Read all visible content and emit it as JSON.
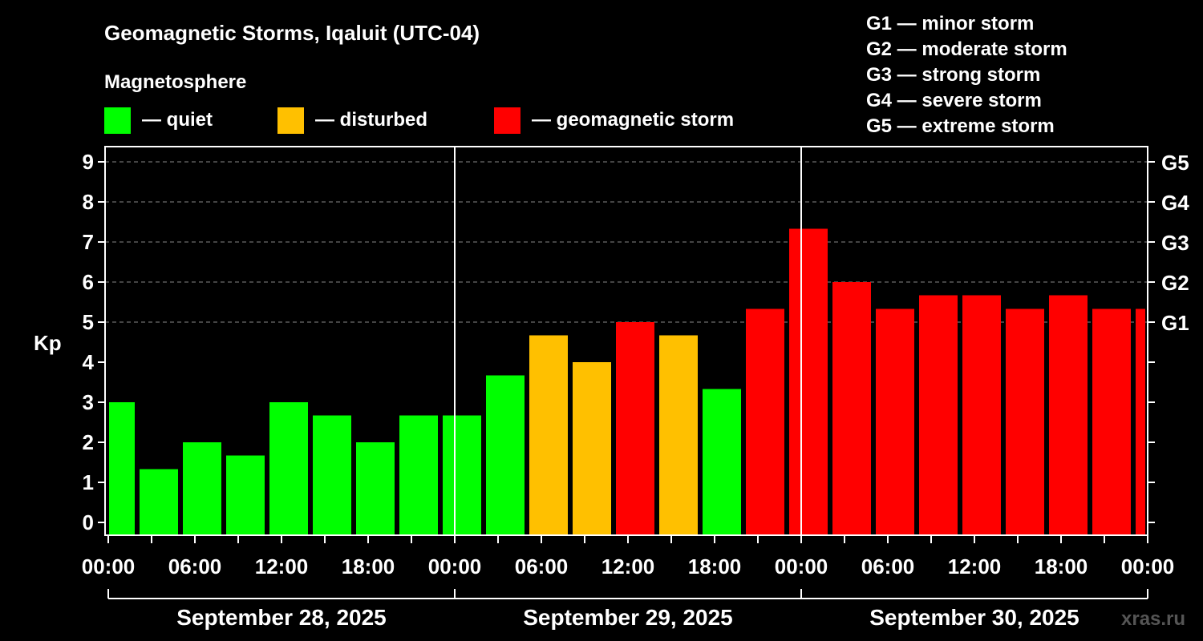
{
  "chart_data": {
    "type": "bar",
    "title": "Geomagnetic Storms, Iqaluit (UTC-04)",
    "legend_title": "Magnetosphere",
    "legend": [
      {
        "label": "— quiet",
        "color": "#00ff00"
      },
      {
        "label": "— disturbed",
        "color": "#ffc000"
      },
      {
        "label": "— geomagnetic storm",
        "color": "#ff0000"
      }
    ],
    "g_scale": [
      "G1 — minor storm",
      "G2 — moderate storm",
      "G3 — strong storm",
      "G4 — severe storm",
      "G5 — extreme storm"
    ],
    "ylabel": "Kp",
    "ylim": [
      -0.32,
      9.7
    ],
    "yticks": [
      "0",
      "1",
      "2",
      "3",
      "4",
      "5",
      "6",
      "7",
      "8",
      "9"
    ],
    "right_ticks": [
      {
        "kp": 5,
        "label": "G1"
      },
      {
        "kp": 6,
        "label": "G2"
      },
      {
        "kp": 7,
        "label": "G3"
      },
      {
        "kp": 8,
        "label": "G4"
      },
      {
        "kp": 9,
        "label": "G5"
      }
    ],
    "xlim_hours": [
      0,
      72
    ],
    "xticks": [
      "00:00",
      "06:00",
      "12:00",
      "18:00",
      "00:00",
      "06:00",
      "12:00",
      "18:00",
      "00:00",
      "06:00",
      "12:00",
      "18:00",
      "00:00"
    ],
    "days": [
      "September 28, 2025",
      "September 29, 2025",
      "September 30, 2025"
    ],
    "bars": [
      {
        "start_h": -1,
        "kp": 3.0
      },
      {
        "start_h": 2,
        "kp": 1.33
      },
      {
        "start_h": 5,
        "kp": 2.0
      },
      {
        "start_h": 8,
        "kp": 1.67
      },
      {
        "start_h": 11,
        "kp": 3.0
      },
      {
        "start_h": 14,
        "kp": 2.67
      },
      {
        "start_h": 17,
        "kp": 2.0
      },
      {
        "start_h": 20,
        "kp": 2.67
      },
      {
        "start_h": 23,
        "kp": 2.67
      },
      {
        "start_h": 26,
        "kp": 3.67
      },
      {
        "start_h": 29,
        "kp": 4.67
      },
      {
        "start_h": 32,
        "kp": 4.0
      },
      {
        "start_h": 35,
        "kp": 5.0
      },
      {
        "start_h": 38,
        "kp": 4.67
      },
      {
        "start_h": 41,
        "kp": 3.33
      },
      {
        "start_h": 44,
        "kp": 5.33
      },
      {
        "start_h": 47,
        "kp": 7.33
      },
      {
        "start_h": 50,
        "kp": 6.0
      },
      {
        "start_h": 53,
        "kp": 5.33
      },
      {
        "start_h": 56,
        "kp": 5.67
      },
      {
        "start_h": 59,
        "kp": 5.67
      },
      {
        "start_h": 62,
        "kp": 5.33
      },
      {
        "start_h": 65,
        "kp": 5.67
      },
      {
        "start_h": 68,
        "kp": 5.33
      },
      {
        "start_h": 71,
        "kp": 5.33
      }
    ],
    "colors": {
      "quiet": "#00ff00",
      "disturbed": "#ffc000",
      "storm": "#ff0000",
      "grid": "#888888"
    },
    "watermark": "xras.ru"
  }
}
